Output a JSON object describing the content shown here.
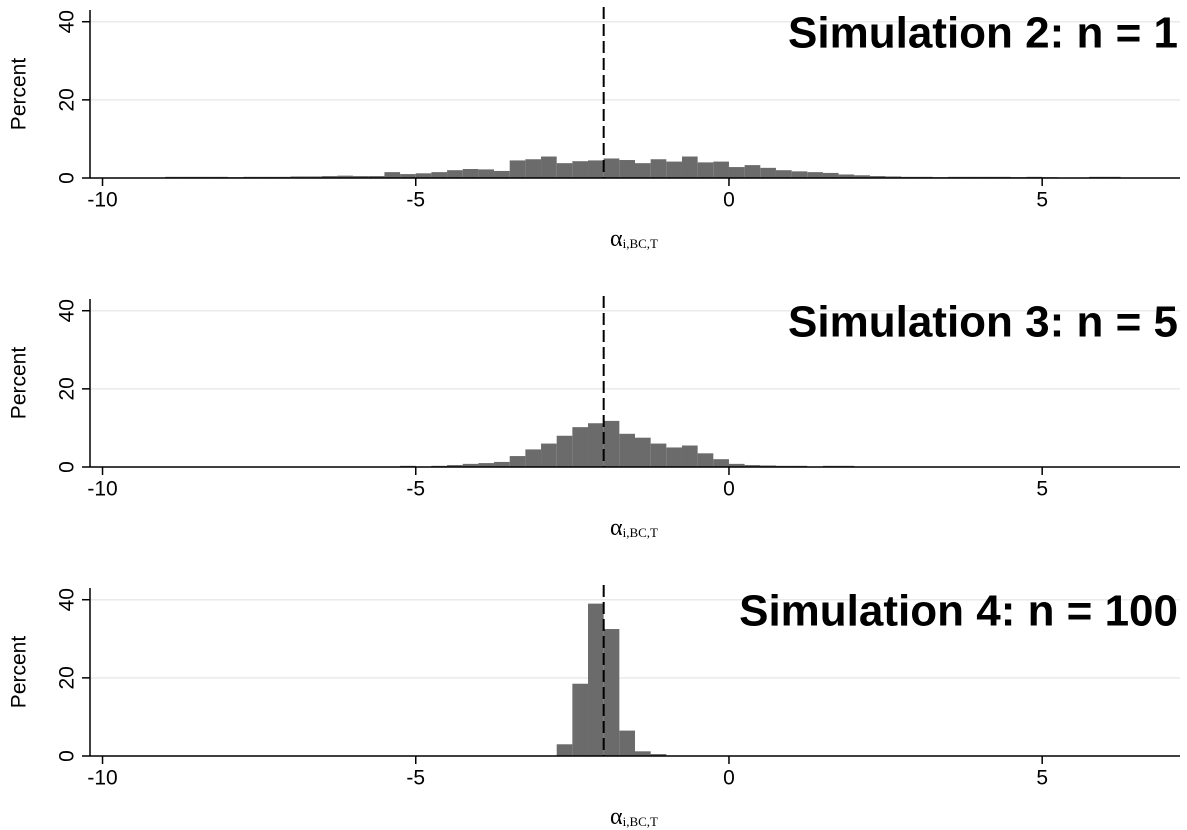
{
  "chart_data": [
    {
      "type": "histogram",
      "title": "Simulation 2: n = 1",
      "xlabel": "α",
      "xlabel_subscript": "i,BC,T",
      "ylabel": "Percent",
      "bins": [
        -9,
        -8.75,
        -8.5,
        -8.25,
        -8,
        -7.75,
        -7.5,
        -7.25,
        -7,
        -6.75,
        -6.5,
        -6.25,
        -6,
        -5.75,
        -5.5,
        -5.25,
        -5,
        -4.75,
        -4.5,
        -4.25,
        -4,
        -3.75,
        -3.5,
        -3.25,
        -3,
        -2.75,
        -2.5,
        -2.25,
        -2,
        -1.75,
        -1.5,
        -1.25,
        -1,
        -0.75,
        -0.5,
        -0.25,
        0,
        0.25,
        0.5,
        0.75,
        1,
        1.25,
        1.5,
        1.75,
        2,
        2.25,
        2.5,
        2.75,
        3,
        3.25,
        3.5,
        3.75,
        4,
        4.25,
        4.5,
        4.75,
        5,
        5.25,
        5.5,
        5.75,
        6,
        6.25
      ],
      "counts": [
        0.3,
        0.3,
        0.3,
        0.3,
        0.2,
        0.3,
        0.3,
        0.3,
        0.4,
        0.4,
        0.5,
        0.6,
        0.5,
        0.5,
        1.5,
        1.0,
        1.2,
        1.5,
        2.0,
        2.3,
        2.2,
        1.8,
        4.5,
        4.8,
        5.5,
        3.8,
        4.3,
        4.5,
        5.0,
        4.6,
        3.8,
        4.8,
        4.2,
        5.5,
        4.0,
        4.2,
        2.8,
        3.3,
        2.6,
        2.0,
        1.7,
        1.5,
        1.3,
        0.9,
        0.7,
        0.5,
        0.4,
        0.3,
        0.3,
        0.2,
        0.3,
        0.3,
        0.3,
        0.3,
        0.2,
        0.3,
        0.2,
        0,
        0,
        0.3,
        0.3
      ],
      "color": "#6b6b6b",
      "vline": -2,
      "xlim": [
        -10.2,
        7.2
      ],
      "xticks": [
        -10,
        -5,
        0,
        5
      ],
      "ylim": [
        0,
        43
      ],
      "yticks": [
        0,
        20,
        40
      ],
      "grid": true
    },
    {
      "type": "histogram",
      "title": "Simulation 3: n = 5",
      "xlabel": "α",
      "xlabel_subscript": "i,BC,T",
      "ylabel": "Percent",
      "bins": [
        -5.25,
        -5,
        -4.75,
        -4.5,
        -4.25,
        -4,
        -3.75,
        -3.5,
        -3.25,
        -3,
        -2.75,
        -2.5,
        -2.25,
        -2,
        -1.75,
        -1.5,
        -1.25,
        -1,
        -0.75,
        -0.5,
        -0.25,
        0,
        0.25,
        0.5,
        0.75,
        1,
        1.25,
        1.5,
        1.75,
        2
      ],
      "counts": [
        0.3,
        0.1,
        0.3,
        0.5,
        0.8,
        1.0,
        1.3,
        2.8,
        4.5,
        6.0,
        8.0,
        10.2,
        11.2,
        11.8,
        8.5,
        7.5,
        6.0,
        5.0,
        5.5,
        3.5,
        2.0,
        0.8,
        0.5,
        0.4,
        0.3,
        0.3,
        0.1,
        0.3,
        0.3
      ],
      "color": "#6b6b6b",
      "vline": -2,
      "xlim": [
        -10.2,
        7.2
      ],
      "xticks": [
        -10,
        -5,
        0,
        5
      ],
      "ylim": [
        0,
        43
      ],
      "yticks": [
        0,
        20,
        40
      ],
      "grid": true
    },
    {
      "type": "histogram",
      "title": "Simulation 4: n = 100",
      "xlabel": "α",
      "xlabel_subscript": "i,BC,T",
      "ylabel": "Percent",
      "bins": [
        -2.75,
        -2.5,
        -2.25,
        -2,
        -1.75,
        -1.5,
        -1.25,
        -1
      ],
      "counts": [
        3.0,
        18.5,
        39,
        32.5,
        6.5,
        1.2,
        0.5
      ],
      "color": "#6b6b6b",
      "vline": -2,
      "xlim": [
        -10.2,
        7.2
      ],
      "xticks": [
        -10,
        -5,
        0,
        5
      ],
      "ylim": [
        0,
        43
      ],
      "yticks": [
        0,
        20,
        40
      ],
      "grid": true
    }
  ]
}
